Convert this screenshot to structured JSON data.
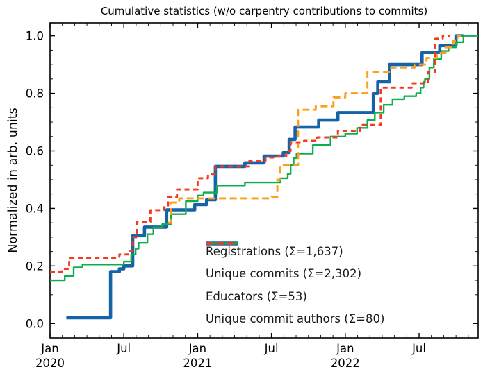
{
  "title": "Cumulative statistics (w/o carpentry contributions to commits)",
  "ylabel": "Normalized in arb. units",
  "chart_data": {
    "type": "line",
    "xlabel": "",
    "xlim": [
      2020.0,
      2022.9
    ],
    "ylim": [
      -0.05,
      1.045
    ],
    "grid": false,
    "tick_direction": "in",
    "legend_position": "lower right",
    "x_major_ticks": [
      {
        "t": 2020.0,
        "line1": "Jan",
        "line2": "2020"
      },
      {
        "t": 2020.5,
        "line1": "Jul",
        "line2": ""
      },
      {
        "t": 2021.0,
        "line1": "Jan",
        "line2": "2021"
      },
      {
        "t": 2021.5,
        "line1": "Jul",
        "line2": ""
      },
      {
        "t": 2022.0,
        "line1": "Jan",
        "line2": "2022"
      },
      {
        "t": 2022.5,
        "line1": "Jul",
        "line2": ""
      }
    ],
    "x_minor": {
      "from": 2020.0,
      "to": 2022.9,
      "step": 0.0833333
    },
    "y_major_ticks": [
      {
        "v": 0.0,
        "label": "0.0"
      },
      {
        "v": 0.2,
        "label": "0.2"
      },
      {
        "v": 0.4,
        "label": "0.4"
      },
      {
        "v": 0.6,
        "label": "0.6"
      },
      {
        "v": 0.8,
        "label": "0.8"
      },
      {
        "v": 1.0,
        "label": "1.0"
      }
    ],
    "y_minor": {
      "from": 0.05,
      "to": 1.0,
      "step": 0.05
    },
    "series": [
      {
        "name": "registrations",
        "label": "Registrations  (Σ=1,637)",
        "color": "#1663a7",
        "width": 4.6,
        "dash": "",
        "step": true,
        "points": [
          [
            2020.11,
            0.02
          ],
          [
            2020.41,
            0.18
          ],
          [
            2020.47,
            0.19
          ],
          [
            2020.5,
            0.2
          ],
          [
            2020.56,
            0.305
          ],
          [
            2020.64,
            0.335
          ],
          [
            2020.79,
            0.395
          ],
          [
            2020.98,
            0.413
          ],
          [
            2021.06,
            0.43
          ],
          [
            2021.12,
            0.546
          ],
          [
            2021.32,
            0.558
          ],
          [
            2021.45,
            0.582
          ],
          [
            2021.58,
            0.594
          ],
          [
            2021.62,
            0.64
          ],
          [
            2021.66,
            0.683
          ],
          [
            2021.82,
            0.707
          ],
          [
            2021.95,
            0.733
          ],
          [
            2022.19,
            0.8
          ],
          [
            2022.22,
            0.84
          ],
          [
            2022.3,
            0.9
          ],
          [
            2022.52,
            0.942
          ],
          [
            2022.64,
            0.966
          ],
          [
            2022.75,
            1.0
          ],
          [
            2022.8,
            1.0
          ]
        ]
      },
      {
        "name": "unique-commits",
        "label": "Unique commits (Σ=2,302)",
        "color": "#0fad4d",
        "width": 2.4,
        "dash": "",
        "step": true,
        "points": [
          [
            2020.0,
            0.15
          ],
          [
            2020.1,
            0.165
          ],
          [
            2020.16,
            0.195
          ],
          [
            2020.22,
            0.205
          ],
          [
            2020.5,
            0.215
          ],
          [
            2020.55,
            0.24
          ],
          [
            2020.58,
            0.26
          ],
          [
            2020.6,
            0.28
          ],
          [
            2020.66,
            0.31
          ],
          [
            2020.7,
            0.334
          ],
          [
            2020.76,
            0.345
          ],
          [
            2020.82,
            0.38
          ],
          [
            2020.92,
            0.425
          ],
          [
            2021.0,
            0.445
          ],
          [
            2021.04,
            0.455
          ],
          [
            2021.13,
            0.48
          ],
          [
            2021.32,
            0.49
          ],
          [
            2021.56,
            0.505
          ],
          [
            2021.61,
            0.52
          ],
          [
            2021.63,
            0.55
          ],
          [
            2021.65,
            0.575
          ],
          [
            2021.67,
            0.59
          ],
          [
            2021.78,
            0.62
          ],
          [
            2021.9,
            0.65
          ],
          [
            2022.0,
            0.66
          ],
          [
            2022.08,
            0.68
          ],
          [
            2022.15,
            0.707
          ],
          [
            2022.2,
            0.733
          ],
          [
            2022.26,
            0.76
          ],
          [
            2022.32,
            0.78
          ],
          [
            2022.4,
            0.79
          ],
          [
            2022.48,
            0.8
          ],
          [
            2022.51,
            0.82
          ],
          [
            2022.53,
            0.84
          ],
          [
            2022.54,
            0.85
          ],
          [
            2022.57,
            0.89
          ],
          [
            2022.6,
            0.92
          ],
          [
            2022.65,
            0.947
          ],
          [
            2022.7,
            0.96
          ],
          [
            2022.75,
            0.978
          ],
          [
            2022.8,
            1.0
          ],
          [
            2022.9,
            1.0
          ]
        ]
      },
      {
        "name": "educators",
        "label": "Educators (Σ=53)",
        "color": "#ff9e1b",
        "width": 2.9,
        "dash": "10 5.5",
        "step": true,
        "points": [
          [
            2020.8,
            0.35
          ],
          [
            2020.82,
            0.42
          ],
          [
            2020.875,
            0.435
          ],
          [
            2021.5,
            0.44
          ],
          [
            2021.54,
            0.5
          ],
          [
            2021.56,
            0.55
          ],
          [
            2021.68,
            0.743
          ],
          [
            2021.8,
            0.755
          ],
          [
            2021.92,
            0.786
          ],
          [
            2022.0,
            0.8
          ],
          [
            2022.15,
            0.875
          ],
          [
            2022.31,
            0.89
          ],
          [
            2022.47,
            0.9
          ],
          [
            2022.55,
            0.923
          ],
          [
            2022.62,
            0.94
          ],
          [
            2022.68,
            0.96
          ],
          [
            2022.73,
            0.983
          ],
          [
            2022.76,
            1.0
          ],
          [
            2022.79,
            1.0
          ]
        ]
      },
      {
        "name": "unique-commit-authors",
        "label": "Unique commit authors (Σ=80)",
        "color": "#f43a1e",
        "width": 2.9,
        "dash": "7 5",
        "step": true,
        "points": [
          [
            2020.0,
            0.18
          ],
          [
            2020.08,
            0.19
          ],
          [
            2020.13,
            0.228
          ],
          [
            2020.45,
            0.232
          ],
          [
            2020.47,
            0.24
          ],
          [
            2020.53,
            0.253
          ],
          [
            2020.56,
            0.3
          ],
          [
            2020.59,
            0.353
          ],
          [
            2020.68,
            0.394
          ],
          [
            2020.77,
            0.404
          ],
          [
            2020.8,
            0.44
          ],
          [
            2020.86,
            0.466
          ],
          [
            2021.0,
            0.505
          ],
          [
            2021.07,
            0.52
          ],
          [
            2021.12,
            0.546
          ],
          [
            2021.35,
            0.565
          ],
          [
            2021.46,
            0.577
          ],
          [
            2021.54,
            0.582
          ],
          [
            2021.6,
            0.6
          ],
          [
            2021.63,
            0.63
          ],
          [
            2021.72,
            0.635
          ],
          [
            2021.81,
            0.647
          ],
          [
            2021.95,
            0.67
          ],
          [
            2022.1,
            0.69
          ],
          [
            2022.24,
            0.82
          ],
          [
            2022.45,
            0.835
          ],
          [
            2022.56,
            0.875
          ],
          [
            2022.61,
            0.99
          ],
          [
            2022.66,
            1.0
          ],
          [
            2022.71,
            1.0
          ]
        ]
      }
    ]
  }
}
